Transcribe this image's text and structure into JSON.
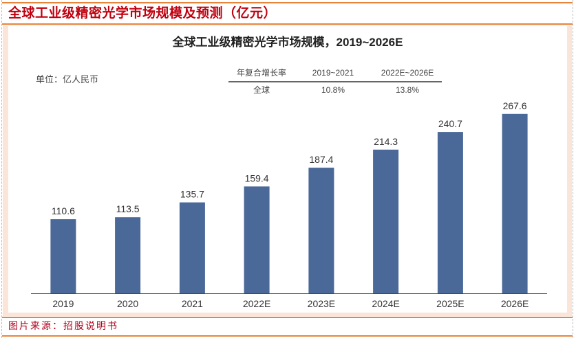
{
  "header": {
    "title": "全球工业级精密光学市场规模及预测（亿元）"
  },
  "footer": {
    "source": "图片来源：招股说明书"
  },
  "colors": {
    "bar": "#4a6898",
    "frame_line": "#e8843a",
    "title_text": "#c0000f",
    "band_background": "#fbe4d8"
  },
  "chart_data": {
    "type": "bar",
    "title": "全球工业级精密光学市场规模，2019~2026E",
    "unit_label": "单位：亿人民币",
    "xlabel": "",
    "ylabel": "",
    "categories": [
      "2019",
      "2020",
      "2021",
      "2022E",
      "2023E",
      "2024E",
      "2025E",
      "2026E"
    ],
    "values": [
      110.6,
      113.5,
      135.7,
      159.4,
      187.4,
      214.3,
      240.7,
      267.6
    ],
    "data_labels": [
      "110.6",
      "113.5",
      "135.7",
      "159.4",
      "187.4",
      "214.3",
      "240.7",
      "267.6"
    ],
    "ylim": [
      0,
      275
    ],
    "grid": false,
    "legend": "none",
    "cagr_table": {
      "headers": [
        "年复合增长率",
        "2019~2021",
        "2022E~2026E"
      ],
      "rows": [
        [
          "全球",
          "10.8%",
          "13.8%"
        ]
      ]
    }
  }
}
